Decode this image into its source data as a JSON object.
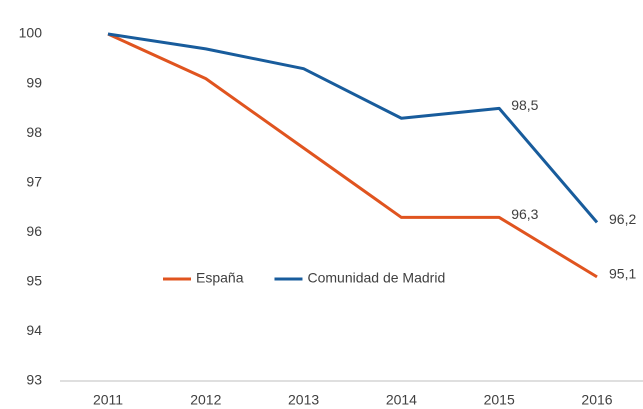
{
  "chart_data": {
    "type": "line",
    "categories": [
      "2011",
      "2012",
      "2013",
      "2014",
      "2015",
      "2016"
    ],
    "series": [
      {
        "name": "España",
        "color": "#e0541f",
        "values": [
          100,
          99.1,
          97.7,
          96.3,
          96.3,
          95.1
        ],
        "value_labels": [
          null,
          null,
          null,
          null,
          "96,3",
          "95,1"
        ]
      },
      {
        "name": "Comunidad de Madrid",
        "color": "#185c9c",
        "values": [
          100,
          99.7,
          99.3,
          98.3,
          98.5,
          96.2
        ],
        "value_labels": [
          null,
          null,
          null,
          null,
          "98,5",
          "96,2"
        ]
      }
    ],
    "ylim": [
      93,
      100
    ],
    "yticks": [
      93,
      94,
      95,
      96,
      97,
      98,
      99,
      100
    ],
    "grid": false,
    "legend": "center"
  }
}
